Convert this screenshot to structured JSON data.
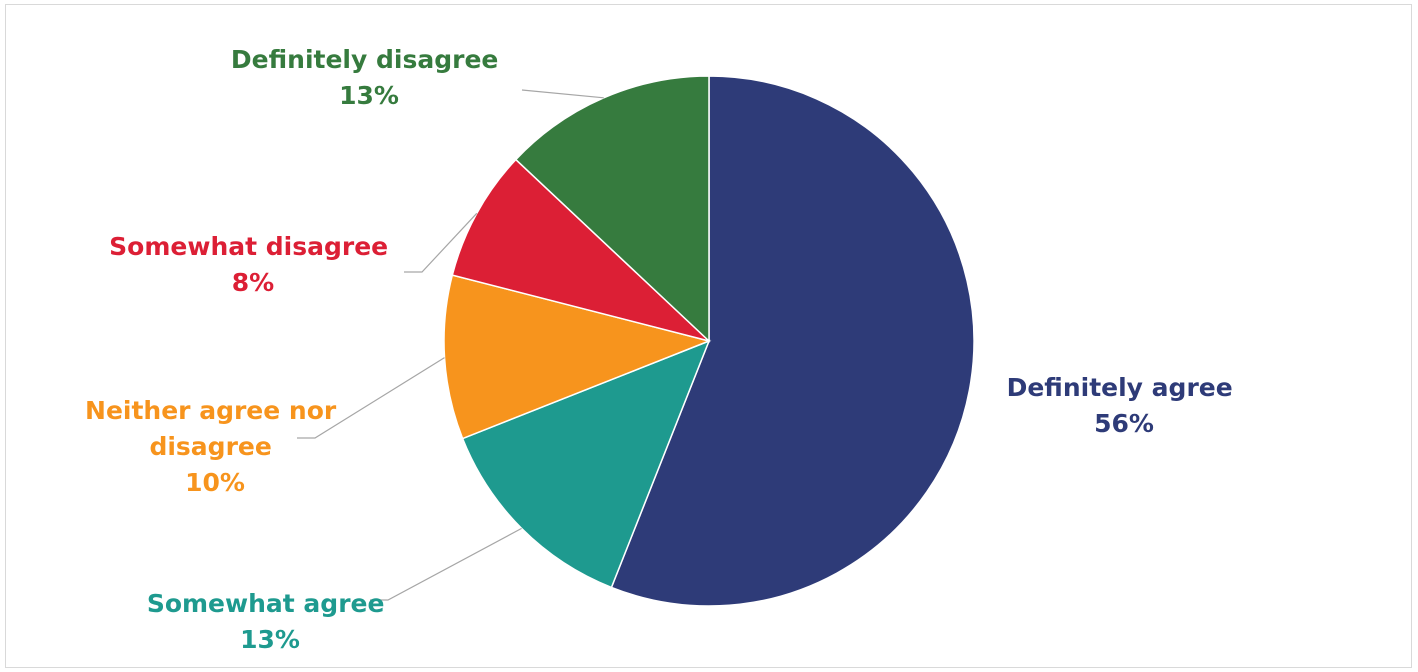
{
  "chart_data": {
    "type": "pie",
    "title": "",
    "slices": [
      {
        "label": "Definitely agree",
        "value": 56,
        "value_label": "56%",
        "color": "#2E3B78"
      },
      {
        "label": "Somewhat agree",
        "value": 13,
        "value_label": "13%",
        "color": "#1E9A8F"
      },
      {
        "label": "Neither agree nor disagree",
        "label_lines": [
          "Neither agree nor",
          "disagree"
        ],
        "value": 10,
        "value_label": "10%",
        "color": "#F7941D"
      },
      {
        "label": "Somewhat disagree",
        "value": 8,
        "value_label": "8%",
        "color": "#DC1F35"
      },
      {
        "label": "Definitely disagree",
        "value": 13,
        "value_label": "13%",
        "color": "#367B3E"
      }
    ],
    "start_angle_deg": 0,
    "direction": "clockwise",
    "legend": "none",
    "data_labels": "outside-with-leader-lines"
  }
}
